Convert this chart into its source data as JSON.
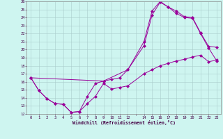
{
  "bg_color": "#cef5f0",
  "line_color": "#990099",
  "grid_color": "#aacccc",
  "xlim": [
    -0.5,
    23.5
  ],
  "ylim": [
    12,
    26
  ],
  "xtick_labels": [
    "0",
    "1",
    "2",
    "3",
    "4",
    "5",
    "6",
    "7",
    "8",
    "9",
    "10",
    "11",
    "12",
    "",
    "14",
    "15",
    "16",
    "17",
    "18",
    "19",
    "20",
    "21",
    "22",
    "23"
  ],
  "xtick_vals": [
    0,
    1,
    2,
    3,
    4,
    5,
    6,
    7,
    8,
    9,
    10,
    11,
    12,
    13,
    14,
    15,
    16,
    17,
    18,
    19,
    20,
    21,
    22,
    23
  ],
  "ytick_vals": [
    12,
    13,
    14,
    15,
    16,
    17,
    18,
    19,
    20,
    21,
    22,
    23,
    24,
    25,
    26
  ],
  "xlabel": "Windchill (Refroidissement éolien,°C)",
  "line1_x": [
    0,
    1,
    2,
    3,
    4,
    5,
    6,
    7,
    8,
    9,
    10,
    11,
    12,
    14,
    15,
    16,
    17,
    18,
    19,
    20,
    21,
    22,
    23
  ],
  "line1_y": [
    16.5,
    14.9,
    13.9,
    13.3,
    13.2,
    12.2,
    12.3,
    13.3,
    14.2,
    15.8,
    15.1,
    15.3,
    15.5,
    17.0,
    17.5,
    18.0,
    18.3,
    18.6,
    18.8,
    19.1,
    19.3,
    18.5,
    18.7
  ],
  "line2_x": [
    0,
    1,
    2,
    3,
    4,
    5,
    6,
    7,
    8,
    9,
    12,
    14,
    15,
    16,
    17,
    18,
    19,
    20,
    21,
    22,
    23
  ],
  "line2_y": [
    16.5,
    14.9,
    13.9,
    13.3,
    13.2,
    12.2,
    12.3,
    14.2,
    15.8,
    16.1,
    17.5,
    20.5,
    24.3,
    25.9,
    25.3,
    24.8,
    24.1,
    24.0,
    22.1,
    20.4,
    20.3
  ],
  "line3_x": [
    0,
    9,
    10,
    11,
    12,
    14,
    15,
    16,
    17,
    18,
    19,
    20,
    21,
    22,
    23
  ],
  "line3_y": [
    16.5,
    16.1,
    16.3,
    16.5,
    17.5,
    21.0,
    24.8,
    26.0,
    25.3,
    24.5,
    24.0,
    23.9,
    22.0,
    20.2,
    18.6
  ]
}
